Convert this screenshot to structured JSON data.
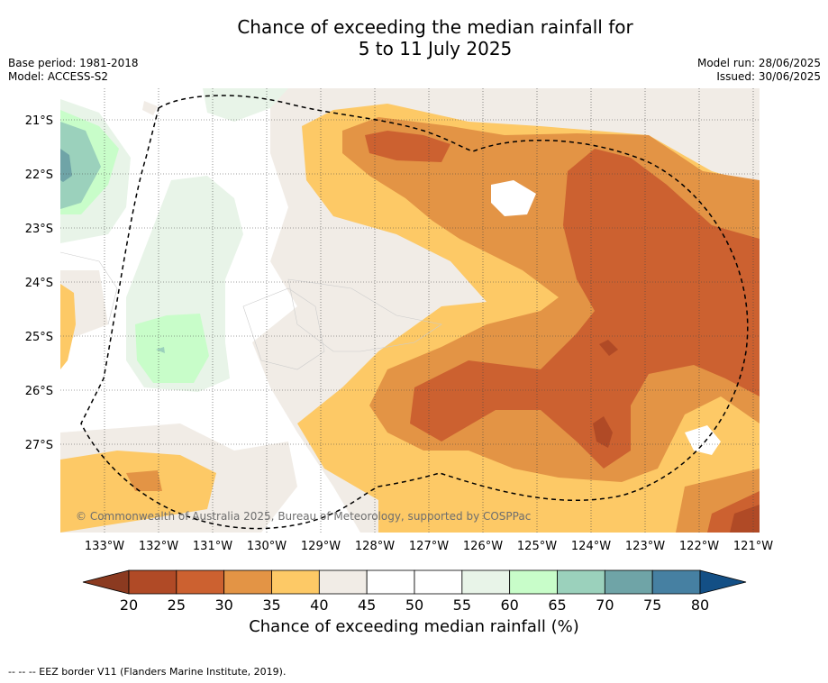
{
  "title_line1": "Chance of exceeding the median rainfall for",
  "title_line2": "5 to 11 July 2025",
  "base_period": "Base period: 1981-2018",
  "model": "Model: ACCESS-S2",
  "model_run": "Model run: 28/06/2025",
  "issued": "Issued: 30/06/2025",
  "copyright": "© Commonwealth of Australia 2025, Bureau of Meteorology, supported by COSPPac",
  "lat_labels": [
    "21°S",
    "22°S",
    "23°S",
    "24°S",
    "25°S",
    "26°S",
    "27°S"
  ],
  "lon_labels": [
    "133°W",
    "132°W",
    "131°W",
    "130°W",
    "129°W",
    "128°W",
    "127°W",
    "126°W",
    "125°W",
    "124°W",
    "123°W",
    "122°W",
    "121°W"
  ],
  "colorbar": {
    "label": "Chance of exceeding median rainfall (%)",
    "ticks": [
      "20",
      "25",
      "30",
      "35",
      "40",
      "45",
      "50",
      "55",
      "60",
      "65",
      "70",
      "75",
      "80"
    ],
    "colors": [
      "#8b3a20",
      "#b04a26",
      "#cc6130",
      "#e39445",
      "#fdc966",
      "#f1ece6",
      "#ffffff",
      "#ffffff",
      "#e8f4e8",
      "#c8fdc9",
      "#9bd1bc",
      "#6fa4a7",
      "#4680a2",
      "#134f85"
    ]
  },
  "legend_note": "-- -- -- EEZ border V11 (Flanders Marine Institute, 2019)."
}
